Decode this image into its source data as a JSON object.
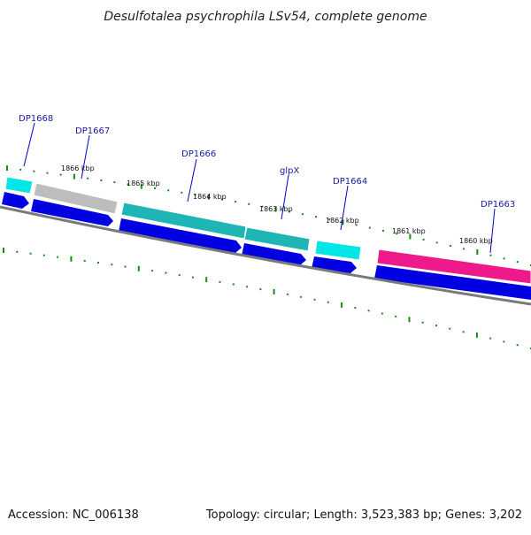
{
  "header": {
    "title": "Desulfotalea psychrophila LSv54, complete genome"
  },
  "footer": {
    "accession": "Accession: NC_006138",
    "summary": "Topology: circular; Length: 3,523,383 bp; Genes: 3,202"
  },
  "colors": {
    "forward_cds": "#0000e0",
    "cyan_feature": "#00e5e5",
    "gray_feature": "#bfbfbf",
    "teal_feature": "#20b8b8",
    "magenta_feature": "#ee1a8c",
    "backbone": "#808080",
    "ticks": "#1a8a1a",
    "label_leader": "#0000cc"
  },
  "gene_labels": [
    {
      "text": "DP1668"
    },
    {
      "text": "DP1667"
    },
    {
      "text": "DP1666"
    },
    {
      "text": "glpX"
    },
    {
      "text": "DP1664"
    },
    {
      "text": "DP1663"
    }
  ],
  "scale_labels": [
    {
      "text": "1866 kbp"
    },
    {
      "text": "1865 kbp"
    },
    {
      "text": "1864 kbp"
    },
    {
      "text": "1863 kbp"
    },
    {
      "text": "1862 kbp"
    },
    {
      "text": "1861 kbp"
    },
    {
      "text": "1860 kbp"
    }
  ]
}
